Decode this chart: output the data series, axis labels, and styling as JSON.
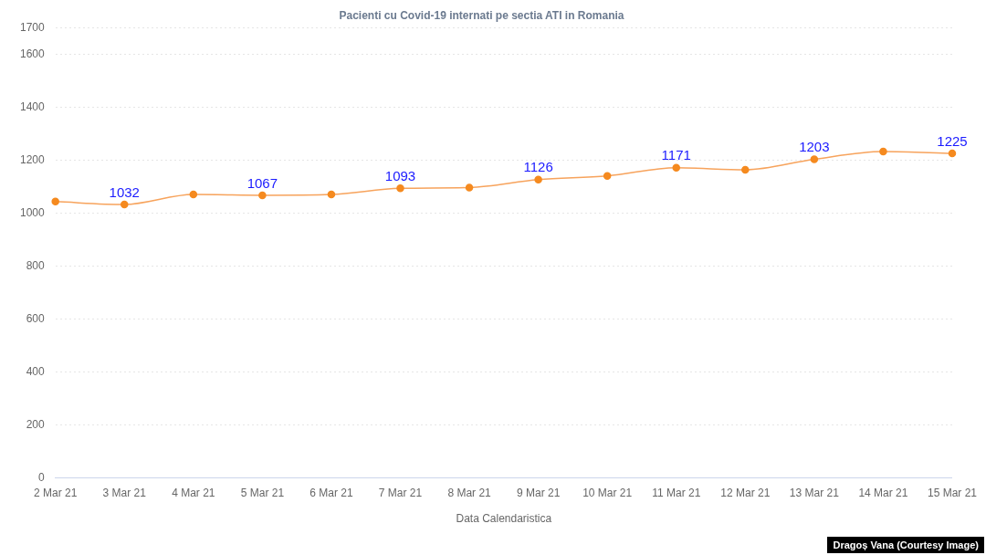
{
  "chart_data": {
    "type": "line",
    "title": "Pacienti cu Covid-19 internati pe sectia ATI in Romania",
    "xlabel": "Data Calendaristica",
    "categories": [
      "2 Mar 21",
      "3 Mar 21",
      "4 Mar 21",
      "5 Mar 21",
      "6 Mar 21",
      "7 Mar 21",
      "8 Mar 21",
      "9 Mar 21",
      "10 Mar 21",
      "11 Mar 21",
      "12 Mar 21",
      "13 Mar 21",
      "14 Mar 21",
      "15 Mar 21"
    ],
    "series": [
      {
        "color": "#f7a35c",
        "values": [
          1043,
          1032,
          1070,
          1067,
          1070,
          1093,
          1096,
          1126,
          1140,
          1171,
          1163,
          1203,
          1232,
          1225
        ],
        "value_labels": [
          null,
          "1032",
          null,
          "1067",
          null,
          "1093",
          null,
          "1126",
          null,
          "1171",
          null,
          "1203",
          null,
          "1225"
        ]
      }
    ],
    "ylim": [
      0,
      1700
    ],
    "yticks": [
      0,
      200,
      400,
      600,
      800,
      1000,
      1200,
      1400,
      1600,
      1700
    ],
    "grid": "y",
    "marker": "circle",
    "legend": false,
    "annotations": [
      "Dragoș Vana (Courtesy Image)"
    ]
  }
}
